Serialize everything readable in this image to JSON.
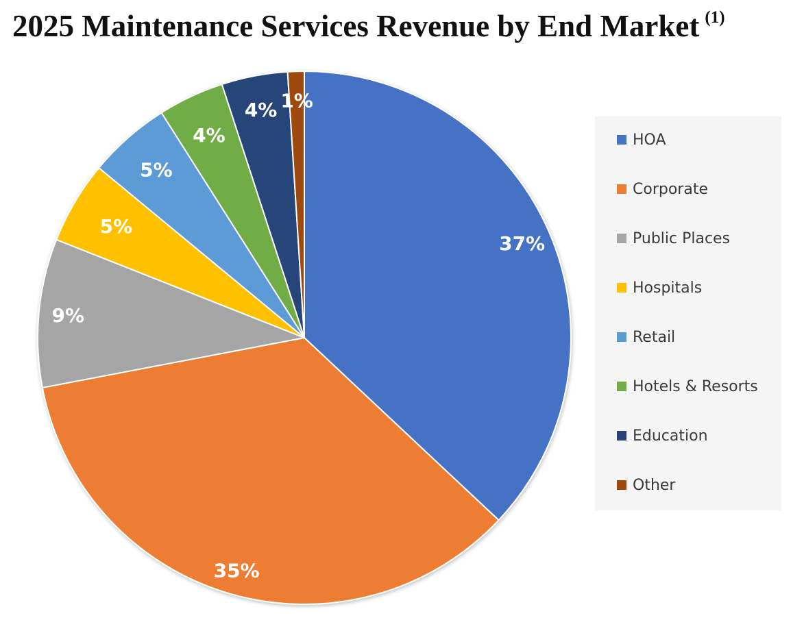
{
  "chart_data": {
    "type": "pie",
    "title": "2025 Maintenance Services Revenue by End Market",
    "title_note": "(1)",
    "categories": [
      "HOA",
      "Corporate",
      "Public Places",
      "Hospitals",
      "Retail",
      "Hotels & Resorts",
      "Education",
      "Other"
    ],
    "values": [
      37,
      35,
      9,
      5,
      5,
      4,
      4,
      1
    ],
    "labels": [
      "37%",
      "35%",
      "9%",
      "5%",
      "5%",
      "4%",
      "4%",
      "1%"
    ],
    "colors": [
      "#4472C4",
      "#ED7D31",
      "#A5A5A5",
      "#FFC000",
      "#5B9BD5",
      "#70AD47",
      "#264478",
      "#9E480E"
    ],
    "unit": "%",
    "legend_position": "right"
  }
}
